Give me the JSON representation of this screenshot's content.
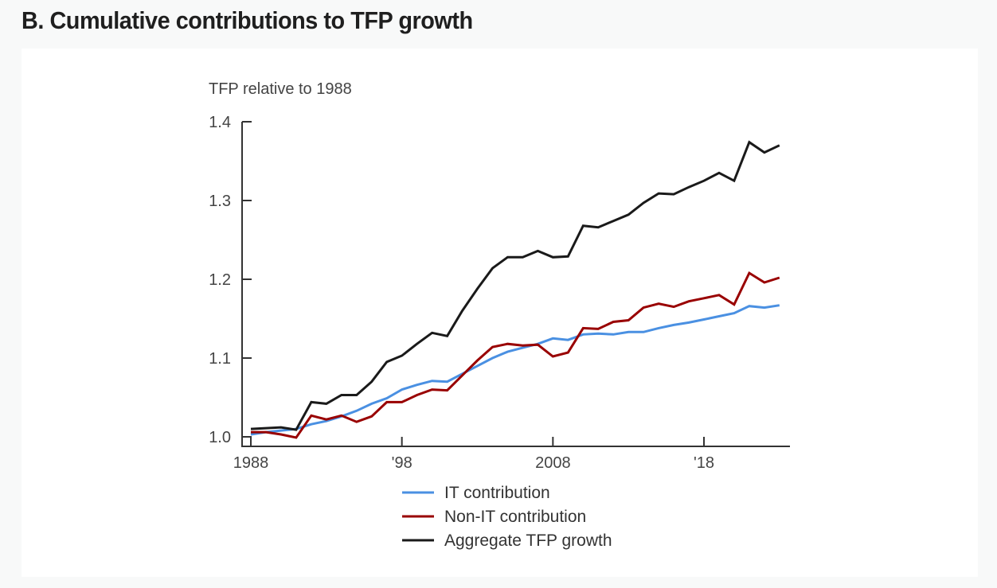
{
  "heading": "B. Cumulative contributions to TFP growth",
  "chart_data": {
    "type": "line",
    "title": "B. Cumulative contributions to TFP growth",
    "ylabel": "TFP relative to 1988",
    "xlabel": "",
    "ylim": [
      1.0,
      1.4
    ],
    "xlim": [
      1987.4,
      2023.7
    ],
    "yticks": [
      {
        "value": 1.0,
        "label": "1.0"
      },
      {
        "value": 1.1,
        "label": "1.1"
      },
      {
        "value": 1.2,
        "label": "1.2"
      },
      {
        "value": 1.3,
        "label": "1.3"
      },
      {
        "value": 1.4,
        "label": "1.4"
      }
    ],
    "xticks": [
      {
        "value": 1988,
        "label": "1988"
      },
      {
        "value": 1998,
        "label": "'98"
      },
      {
        "value": 2008,
        "label": "2008"
      },
      {
        "value": 2018,
        "label": "'18"
      }
    ],
    "grid": false,
    "legend_position": "bottom-center",
    "x": [
      1988,
      1989,
      1990,
      1991,
      1992,
      1993,
      1994,
      1995,
      1996,
      1997,
      1998,
      1999,
      2000,
      2001,
      2002,
      2003,
      2004,
      2005,
      2006,
      2007,
      2008,
      2009,
      2010,
      2011,
      2012,
      2013,
      2014,
      2015,
      2016,
      2017,
      2018,
      2019,
      2020,
      2021,
      2022,
      2023
    ],
    "series": [
      {
        "name": "IT contribution",
        "color": "#4a90e2",
        "values": [
          1.003,
          1.006,
          1.008,
          1.01,
          1.016,
          1.02,
          1.026,
          1.033,
          1.042,
          1.049,
          1.06,
          1.066,
          1.071,
          1.07,
          1.08,
          1.09,
          1.1,
          1.108,
          1.113,
          1.118,
          1.125,
          1.123,
          1.13,
          1.131,
          1.13,
          1.133,
          1.133,
          1.138,
          1.142,
          1.145,
          1.149,
          1.153,
          1.157,
          1.166,
          1.164,
          1.167
        ]
      },
      {
        "name": "Non-IT contribution",
        "color": "#990000",
        "values": [
          1.006,
          1.006,
          1.003,
          0.999,
          1.027,
          1.022,
          1.027,
          1.019,
          1.026,
          1.044,
          1.044,
          1.053,
          1.06,
          1.059,
          1.078,
          1.097,
          1.114,
          1.118,
          1.116,
          1.117,
          1.102,
          1.107,
          1.138,
          1.137,
          1.146,
          1.148,
          1.164,
          1.169,
          1.165,
          1.172,
          1.176,
          1.18,
          1.168,
          1.208,
          1.196,
          1.202
        ]
      },
      {
        "name": "Aggregate TFP growth",
        "color": "#1a1a1a",
        "values": [
          1.01,
          1.011,
          1.012,
          1.009,
          1.044,
          1.042,
          1.053,
          1.053,
          1.07,
          1.095,
          1.103,
          1.118,
          1.132,
          1.128,
          1.16,
          1.188,
          1.214,
          1.228,
          1.228,
          1.236,
          1.228,
          1.229,
          1.268,
          1.266,
          1.274,
          1.282,
          1.297,
          1.309,
          1.308,
          1.317,
          1.325,
          1.335,
          1.325,
          1.374,
          1.361,
          1.37
        ]
      }
    ]
  }
}
